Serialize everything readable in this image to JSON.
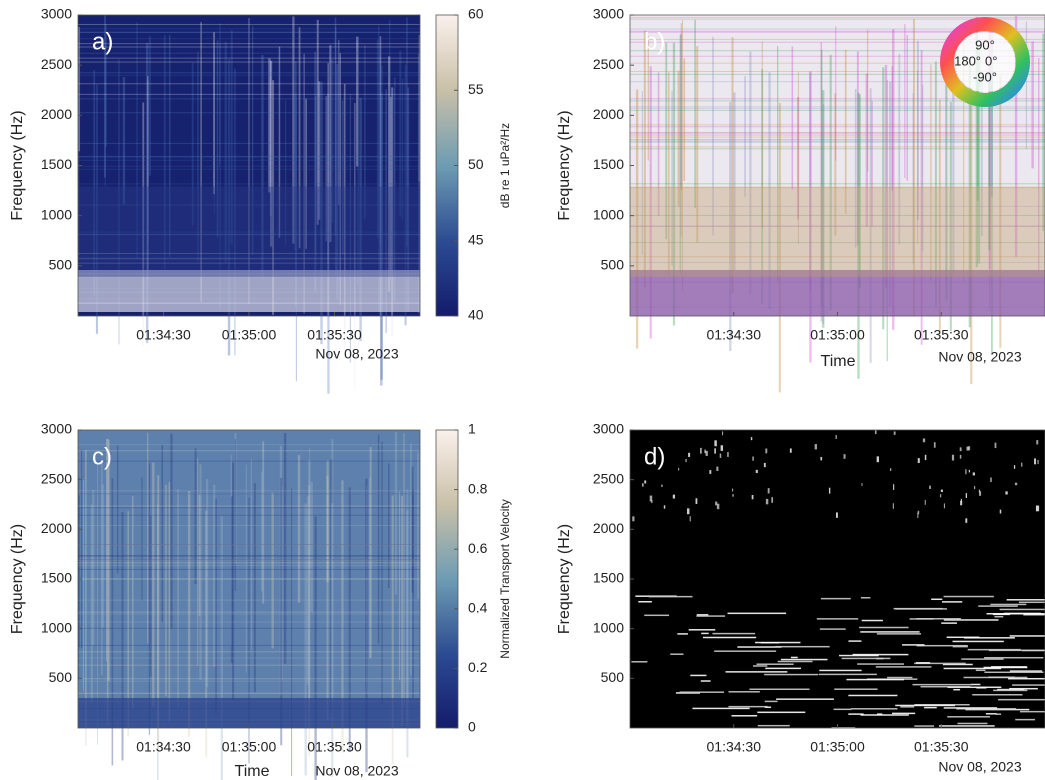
{
  "chart_data": [
    {
      "type": "heatmap",
      "title": "a)",
      "ylabel": "Frequency (Hz)",
      "date_label": "Nov 08, 2023",
      "xlim": [
        5640,
        5760
      ],
      "xticks": [
        {
          "value": 5670,
          "label": "01:34:30"
        },
        {
          "value": 5700,
          "label": "01:35:00"
        },
        {
          "value": 5730,
          "label": "01:35:30"
        }
      ],
      "ylim": [
        0,
        3000
      ],
      "yticks": [
        500,
        1000,
        1500,
        2000,
        2500,
        3000
      ],
      "colorbar": {
        "label": "dB re 1 uPa²/Hz",
        "lim": [
          40,
          60
        ],
        "ticks": [
          40,
          45,
          50,
          55,
          60
        ]
      },
      "colormap": [
        "#141b6b",
        "#2c4c92",
        "#6e9cb3",
        "#c9c0a8",
        "#fbf1ec"
      ]
    },
    {
      "type": "heatmap",
      "title": "b)",
      "ylabel": "Frequency (Hz)",
      "xlabel": "Time",
      "date_label": "Nov 08, 2023",
      "xlim": [
        5640,
        5760
      ],
      "xticks": [
        {
          "value": 5670,
          "label": "01:34:30"
        },
        {
          "value": 5700,
          "label": "01:35:00"
        },
        {
          "value": 5730,
          "label": "01:35:30"
        }
      ],
      "ylim": [
        0,
        3000
      ],
      "yticks": [
        500,
        1000,
        1500,
        2000,
        2500,
        3000
      ],
      "phase_wheel_labels": [
        "90°",
        "180°",
        "0°",
        "-90°"
      ]
    },
    {
      "type": "heatmap",
      "title": "c)",
      "ylabel": "Frequency (Hz)",
      "xlabel": "Time",
      "date_label": "Nov 08, 2023",
      "xlim": [
        5640,
        5760
      ],
      "xticks": [
        {
          "value": 5670,
          "label": "01:34:30"
        },
        {
          "value": 5700,
          "label": "01:35:00"
        },
        {
          "value": 5730,
          "label": "01:35:30"
        }
      ],
      "ylim": [
        0,
        3000
      ],
      "yticks": [
        500,
        1000,
        1500,
        2000,
        2500,
        3000
      ],
      "colorbar": {
        "label": "Normalized Transport Velocity",
        "lim": [
          0,
          1
        ],
        "ticks": [
          0,
          0.2,
          0.4,
          0.6,
          0.8,
          1
        ]
      },
      "colormap": [
        "#141b6b",
        "#2c4c92",
        "#6e9cb3",
        "#c9c0a8",
        "#fbf1ec"
      ]
    },
    {
      "type": "heatmap",
      "title": "d)",
      "ylabel": "Frequency (Hz)",
      "date_label": "Nov 08, 2023",
      "xlim": [
        5640,
        5760
      ],
      "xticks": [
        {
          "value": 5670,
          "label": "01:34:30"
        },
        {
          "value": 5700,
          "label": "01:35:00"
        },
        {
          "value": 5730,
          "label": "01:35:30"
        }
      ],
      "ylim": [
        0,
        3000
      ],
      "yticks": [
        500,
        1000,
        1500,
        2000,
        2500,
        3000
      ]
    }
  ]
}
